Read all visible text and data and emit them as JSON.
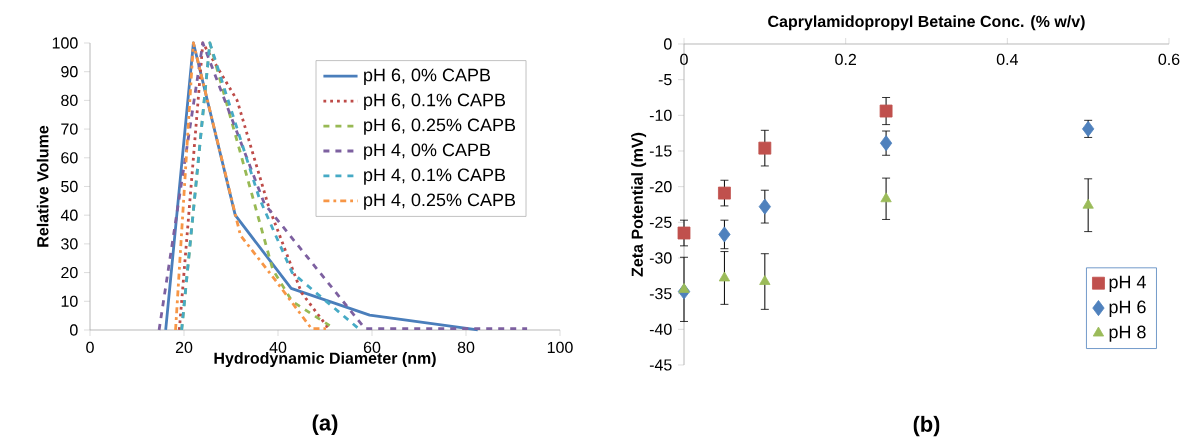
{
  "chart_data": [
    {
      "type": "line",
      "xlabel": "Hydrodynamic Diameter (nm)",
      "ylabel": "Relative Volume",
      "annotations": [
        "(a)"
      ],
      "xlim": [
        0,
        100
      ],
      "ylim": [
        0,
        100
      ],
      "xticks": [
        0,
        20,
        40,
        60,
        80,
        100
      ],
      "yticks": [
        0,
        10,
        20,
        30,
        40,
        50,
        60,
        70,
        80,
        90,
        100
      ],
      "grid": false,
      "legend": "top right",
      "marker": "none",
      "series": [
        {
          "name": "pH 6, 0% CAPB",
          "color": "#4a7ebb",
          "line_style": "solid",
          "x": [
            16.1,
            22,
            30.9,
            42.8,
            59.5,
            82.5
          ],
          "values": [
            0,
            100,
            40,
            14.5,
            5.2,
            0
          ]
        },
        {
          "name": "pH 6, 0.1% CAPB",
          "color": "#be4b48",
          "line_style": "dotted",
          "x": [
            19,
            24,
            31.3,
            38,
            45,
            51
          ],
          "values": [
            0,
            100,
            80,
            43,
            13,
            0
          ]
        },
        {
          "name": "pH 6, 0.25% CAPB",
          "color": "#98b954",
          "line_style": "dashed",
          "x": [
            19.5,
            25.5,
            38.9,
            43,
            51
          ],
          "values": [
            0,
            100,
            21,
            10,
            1.5
          ]
        },
        {
          "name": "pH 4, 0% CAPB",
          "color": "#7d60a0",
          "line_style": "dashed",
          "x": [
            14.7,
            24,
            37.1,
            58.5,
            93
          ],
          "values": [
            0,
            100,
            44,
            0.5,
            0.5
          ]
        },
        {
          "name": "pH 4, 0.1% CAPB",
          "color": "#46aac5",
          "line_style": "dashed",
          "x": [
            19.5,
            25.5,
            36,
            43,
            57.5
          ],
          "values": [
            0,
            100,
            46,
            20,
            0
          ]
        },
        {
          "name": "pH 4, 0.25% CAPB",
          "color": "#f79646",
          "line_style": "dashdot",
          "x": [
            18.2,
            22,
            32,
            39.7,
            47.1,
            50.2
          ],
          "values": [
            0,
            100,
            33,
            16.8,
            0.5,
            0.5
          ]
        }
      ]
    },
    {
      "type": "scatter",
      "xlabel": "Caprylamidopropyl Betaine Conc. (% w/v)",
      "ylabel": "Zeta Potential (mV)",
      "annotations": [
        "(b)"
      ],
      "xlim": [
        0,
        0.6
      ],
      "ylim": [
        -45,
        0
      ],
      "xticks": [
        0,
        0.2,
        0.4,
        0.6
      ],
      "yticks": [
        -45,
        -40,
        -35,
        -30,
        -25,
        -20,
        -15,
        -10,
        -5,
        0
      ],
      "grid": false,
      "legend": "bottom right",
      "series": [
        {
          "name": "pH 4",
          "color": "#c0504d",
          "marker": "square",
          "x": [
            0,
            0.05,
            0.1,
            0.25
          ],
          "values": [
            -26.5,
            -20.9,
            -14.6,
            -9.4
          ],
          "errors": [
            1.8,
            1.8,
            2.5,
            1.9
          ]
        },
        {
          "name": "pH 6",
          "color": "#4f81bd",
          "marker": "diamond",
          "x": [
            0,
            0.05,
            0.1,
            0.25,
            0.5
          ],
          "values": [
            -34.7,
            -26.7,
            -22.8,
            -13.9,
            -11.9
          ],
          "errors": [
            null,
            2.0,
            2.3,
            1.7,
            1.2
          ]
        },
        {
          "name": "pH 8",
          "color": "#9bbb59",
          "marker": "triangle",
          "x": [
            0,
            0.05,
            0.1,
            0.25,
            0.5
          ],
          "values": [
            -34.4,
            -32.8,
            -33.3,
            -21.7,
            -22.6
          ],
          "errors": [
            4.5,
            3.7,
            3.9,
            2.9,
            3.7
          ]
        }
      ]
    }
  ]
}
